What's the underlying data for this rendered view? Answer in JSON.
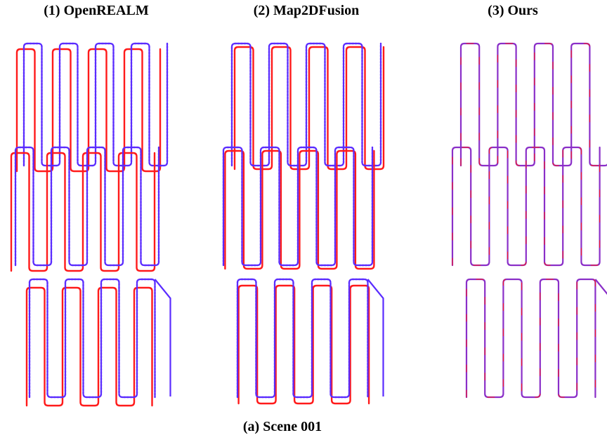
{
  "titles": {
    "panel1": "(1) OpenREALM",
    "panel2": "(2) Map2DFusion",
    "panel3": "(3) Ours"
  },
  "caption": "(a) Scene 001",
  "colors": {
    "estimated": "#ff1a1a",
    "reference": "#5a2cff",
    "blend": "#8a2fc8"
  }
}
